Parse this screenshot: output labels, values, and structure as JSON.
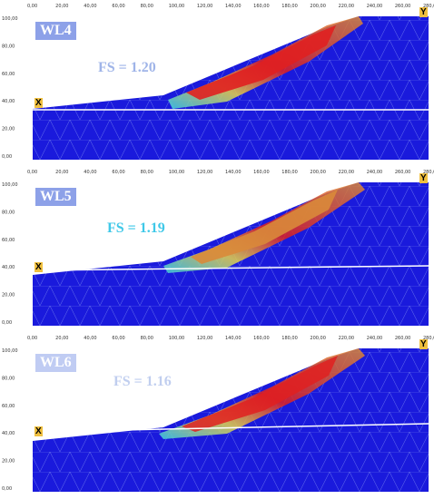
{
  "x_ticks": [
    "0,00",
    "20,00",
    "40,00",
    "60,00",
    "80,00",
    "100,00",
    "120,00",
    "140,00",
    "160,00",
    "180,00",
    "200,00",
    "220,00",
    "240,00",
    "260,00",
    "280,00"
  ],
  "y_ticks": [
    "100,00",
    "80,00",
    "60,00",
    "40,00",
    "20,00",
    "0,00"
  ],
  "panels": [
    {
      "label": "WL4",
      "fs": "FS = 1.20",
      "water_level_y": 37
    },
    {
      "label": "WL5",
      "fs": "FS = 1.19",
      "water_level_y": 42
    },
    {
      "label": "WL6",
      "fs": "FS = 1.16",
      "water_level_y": 46
    }
  ],
  "markers": {
    "point": "X",
    "axis": "Y"
  },
  "colors": {
    "mesh": "#1a1adc",
    "failure_core": "#e02020",
    "failure_mid": "#d98a3a",
    "halo": "#40d0e0"
  }
}
